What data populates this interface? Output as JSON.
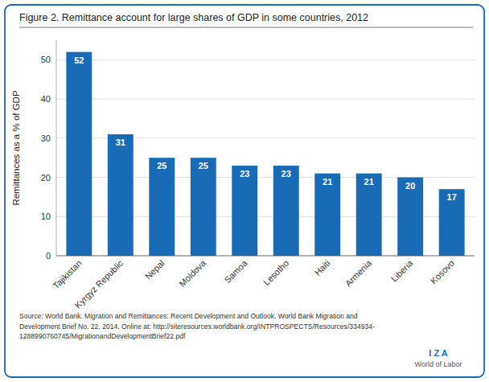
{
  "chart_data": {
    "type": "bar",
    "title": "Figure 2. Remittance account for large shares of GDP in some countries, 2012",
    "categories": [
      "Tajikistan",
      "Kyrgyz Republic",
      "Nepal",
      "Moldova",
      "Samoa",
      "Lesotho",
      "Haiti",
      "Armenia",
      "Liberia",
      "Kosovo"
    ],
    "values": [
      52,
      31,
      25,
      25,
      23,
      23,
      21,
      21,
      20,
      17
    ],
    "color": "#1A6BB5",
    "ylabel": "Remittances as a % of GDP",
    "ylim": [
      0,
      55
    ],
    "yticks": [
      0,
      10,
      20,
      30,
      40,
      50
    ],
    "grid": true,
    "data_labels": true,
    "annotations": [
      "Source: World Bank. Migration and Remittances: Recent Development and Outlook. World Bank Migration and\nDevelopment Brief No. 22, 2014. Online at: http://siteresources.worldbank.org/INTPROSPECTS/Resources/334934-\n1288990760745/MigrationandDevelopmentBrief22.pdf",
      "I  Z  A",
      "World of Labor"
    ]
  }
}
